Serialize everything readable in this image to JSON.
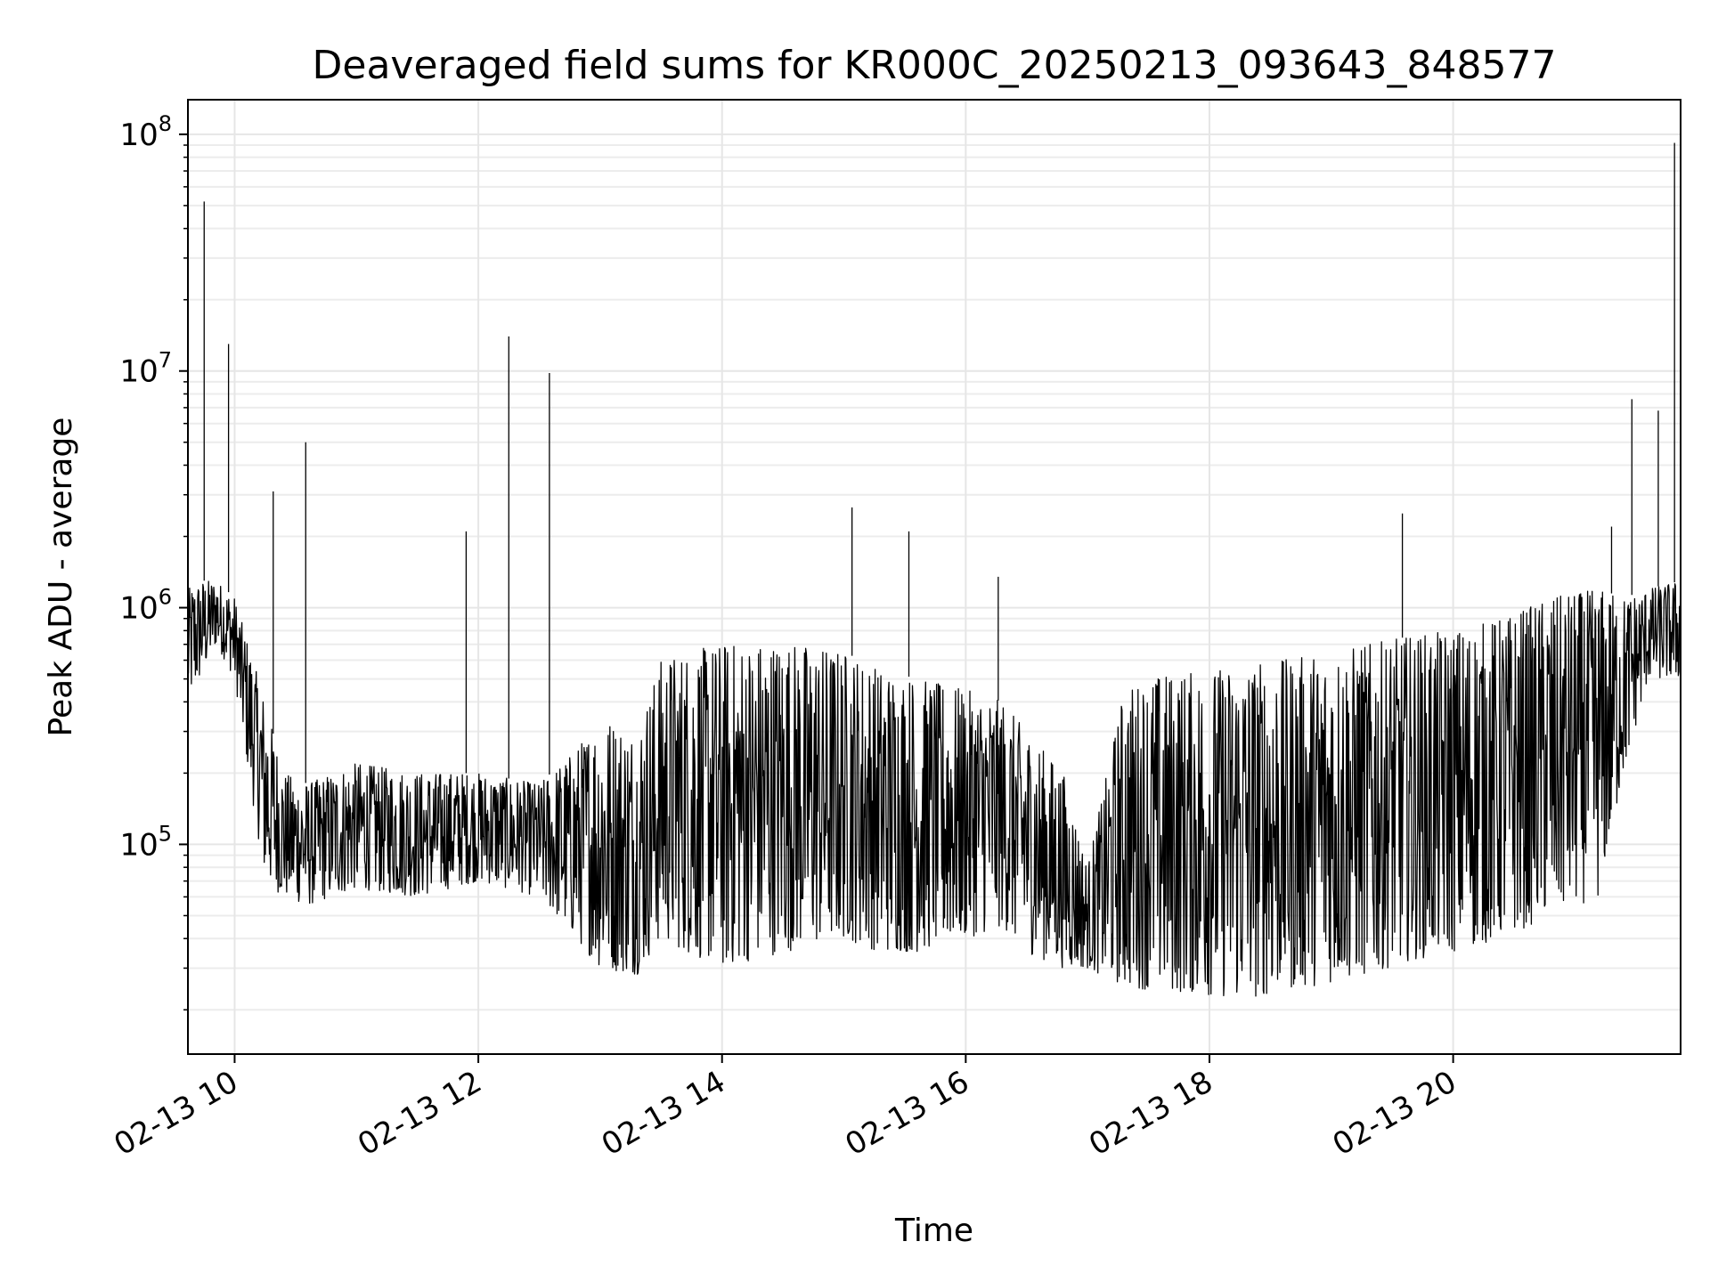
{
  "chart_data": {
    "type": "line",
    "title": "Deaveraged field sums for KR000C_20250213_093643_848577",
    "xlabel": "Time",
    "ylabel": "Peak ADU - average",
    "x_axis": {
      "kind": "datetime",
      "range": [
        "2025-02-13 09:37",
        "2025-02-13 21:52"
      ],
      "tick_values": [
        "2025-02-13 10:00",
        "2025-02-13 12:00",
        "2025-02-13 14:00",
        "2025-02-13 16:00",
        "2025-02-13 18:00",
        "2025-02-13 20:00"
      ],
      "tick_labels": [
        "02-13 10",
        "02-13 12",
        "02-13 14",
        "02-13 16",
        "02-13 18",
        "02-13 20"
      ],
      "tick_label_rotation_deg": 30
    },
    "y_axis": {
      "scale": "log",
      "range": [
        13000,
        140000000
      ],
      "tick_values": [
        100000,
        1000000,
        10000000,
        100000000
      ],
      "tick_base": "10",
      "tick_exponents": [
        "5",
        "6",
        "7",
        "8"
      ]
    },
    "grid": true,
    "series": [
      {
        "color": "#000000",
        "envelope_hours": [
          9.62,
          9.72,
          9.85,
          10.0,
          10.15,
          10.25,
          10.4,
          10.6,
          10.8,
          11.0,
          11.5,
          12.0,
          12.5,
          12.8,
          13.0,
          13.3,
          13.5,
          13.7,
          14.0,
          14.5,
          15.0,
          15.3,
          15.6,
          16.0,
          16.3,
          16.5,
          16.8,
          17.0,
          17.3,
          17.6,
          18.0,
          18.3,
          18.6,
          19.0,
          19.3,
          19.6,
          20.0,
          20.4,
          20.8,
          21.2,
          21.4,
          21.6,
          21.87
        ],
        "envelope_high": [
          1200000,
          1300000,
          1300000,
          1100000,
          600000,
          400000,
          200000,
          180000,
          200000,
          220000,
          200000,
          200000,
          180000,
          250000,
          350000,
          300000,
          600000,
          650000,
          700000,
          720000,
          650000,
          550000,
          500000,
          450000,
          400000,
          300000,
          200000,
          80000,
          450000,
          520000,
          540000,
          580000,
          600000,
          650000,
          700000,
          750000,
          800000,
          900000,
          1100000,
          1200000,
          1100000,
          1200000,
          1300000
        ],
        "envelope_low": [
          400000,
          500000,
          700000,
          500000,
          150000,
          70000,
          60000,
          55000,
          60000,
          65000,
          60000,
          70000,
          60000,
          40000,
          30000,
          28000,
          40000,
          35000,
          30000,
          35000,
          40000,
          35000,
          35000,
          40000,
          45000,
          35000,
          30000,
          30000,
          25000,
          24000,
          23000,
          22000,
          24000,
          26000,
          28000,
          32000,
          35000,
          40000,
          50000,
          60000,
          200000,
          500000,
          500000
        ],
        "spikes": [
          {
            "x": "2025-02-13 09:45",
            "y": 52000000
          },
          {
            "x": "2025-02-13 09:57",
            "y": 13000000
          },
          {
            "x": "2025-02-13 10:19",
            "y": 3100000
          },
          {
            "x": "2025-02-13 10:35",
            "y": 5000000
          },
          {
            "x": "2025-02-13 11:54",
            "y": 2100000
          },
          {
            "x": "2025-02-13 12:15",
            "y": 14000000
          },
          {
            "x": "2025-02-13 12:35",
            "y": 9800000
          },
          {
            "x": "2025-02-13 15:04",
            "y": 2650000
          },
          {
            "x": "2025-02-13 15:32",
            "y": 2100000
          },
          {
            "x": "2025-02-13 16:16",
            "y": 1350000
          },
          {
            "x": "2025-02-13 19:35",
            "y": 2500000
          },
          {
            "x": "2025-02-13 21:18",
            "y": 2200000
          },
          {
            "x": "2025-02-13 21:28",
            "y": 7600000
          },
          {
            "x": "2025-02-13 21:41",
            "y": 6800000
          },
          {
            "x": "2025-02-13 21:49",
            "y": 92000000
          }
        ]
      }
    ]
  }
}
